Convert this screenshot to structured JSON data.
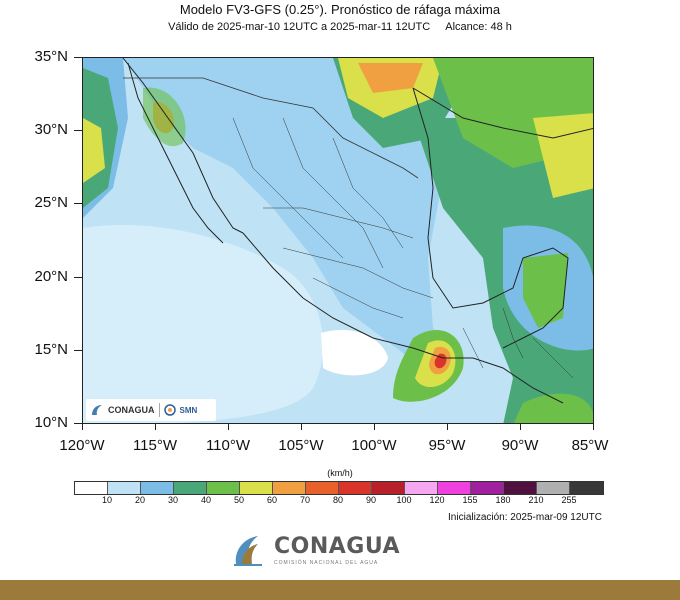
{
  "header": {
    "title": "Modelo FV3-GFS (0.25°). Pronóstico de ráfaga máxima",
    "valid": "Válido de 2025-mar-10 12UTC a 2025-mar-11 12UTC",
    "range": "Alcance: 48 h"
  },
  "axes": {
    "lat_labels": [
      "35°N",
      "30°N",
      "25°N",
      "20°N",
      "15°N",
      "10°N"
    ],
    "lon_labels": [
      "120°W",
      "115°W",
      "110°W",
      "105°W",
      "100°W",
      "95°W",
      "90°W",
      "85°W"
    ]
  },
  "legend": {
    "units": "(km/h)",
    "ticks": [
      "10",
      "20",
      "30",
      "40",
      "50",
      "60",
      "70",
      "80",
      "90",
      "100",
      "120",
      "155",
      "180",
      "210",
      "255"
    ],
    "colors": [
      "#ffffff",
      "#bfe3f5",
      "#7cbde8",
      "#4aa878",
      "#6cc04a",
      "#d9e04a",
      "#f0a040",
      "#e8602a",
      "#d8342a",
      "#b8202a",
      "#f7a7f0",
      "#f040e0",
      "#a020a0",
      "#501040",
      "#b0b0b0",
      "#383838"
    ]
  },
  "map_colors": {
    "ocean_base": "#bfe3f5",
    "light_blue": "#9fd2f0",
    "blue": "#7cbde8",
    "green": "#4aa878",
    "light_green": "#6cc04a",
    "yellow": "#d9e04a",
    "orange": "#f0a040",
    "red": "#d8342a",
    "white": "#ffffff"
  },
  "logo": {
    "small_name": "CONAGUA",
    "smn": "SMN"
  },
  "initialization": "Inicialización: 2025-mar-09 12UTC",
  "brand": {
    "name": "CONAGUA",
    "subtitle": "COMISIÓN NACIONAL DEL AGUA"
  }
}
